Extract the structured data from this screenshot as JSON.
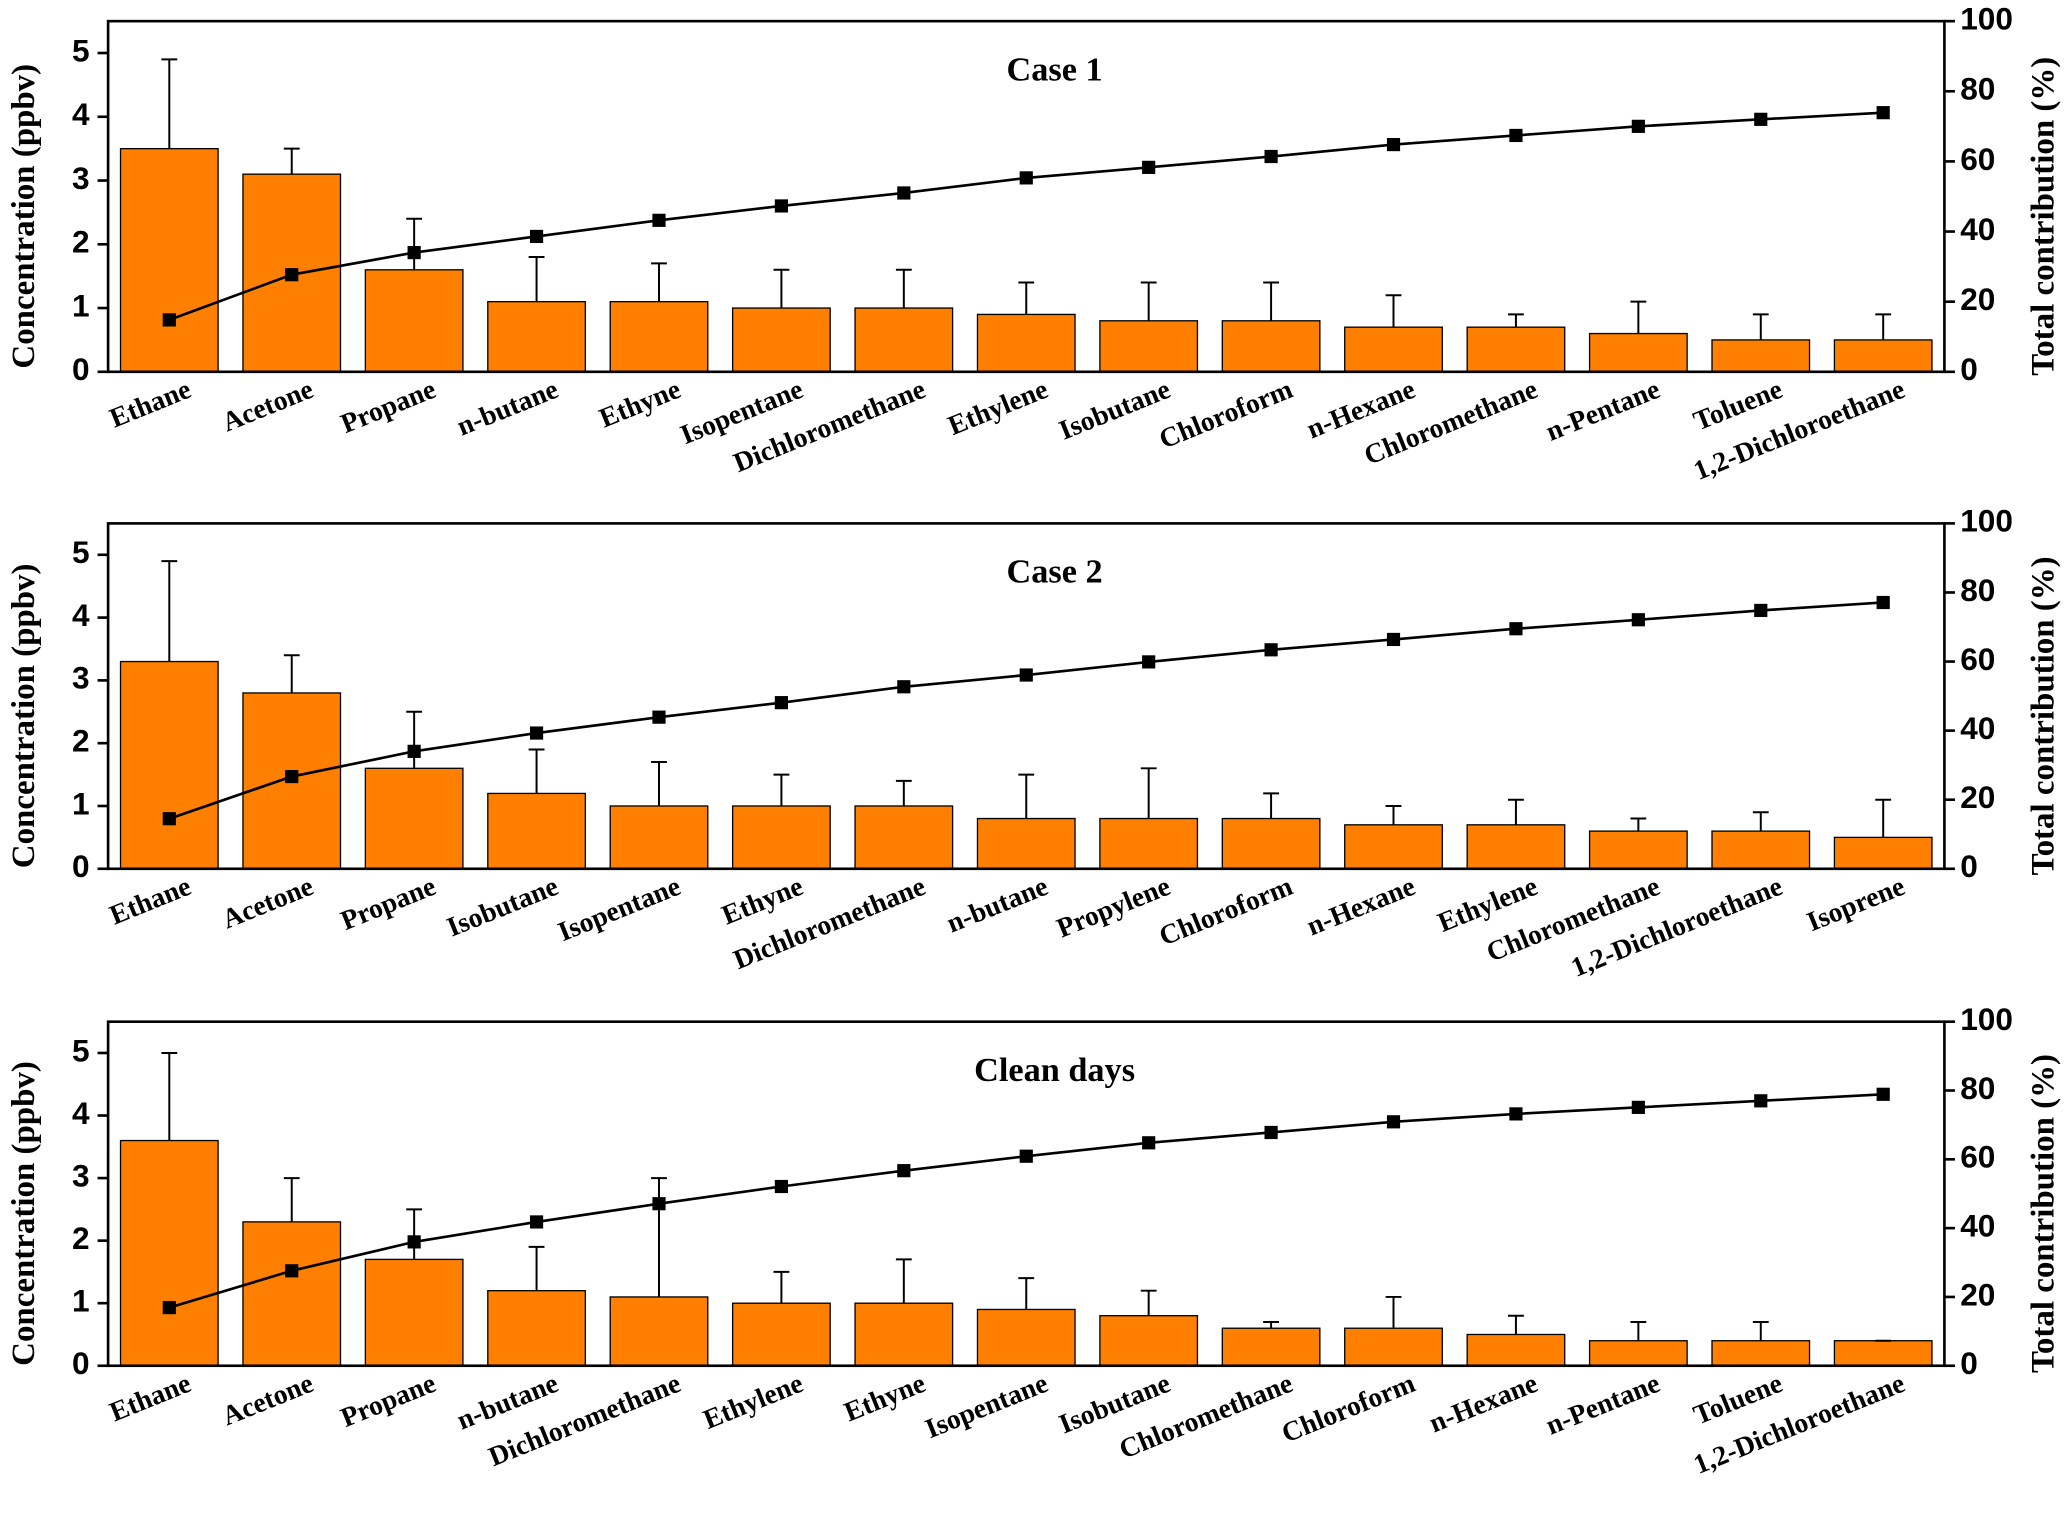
{
  "chart_data": [
    {
      "type": "bar",
      "title": "Case 1",
      "ylabel": "Concentration (ppbv)",
      "y2label": "Total contribution (%)",
      "categories": [
        "Ethane",
        "Acetone",
        "Propane",
        "n-butane",
        "Ethyne",
        "Isopentane",
        "Dichloromethane",
        "Ethylene",
        "Isobutane",
        "Chloroform",
        "n-Hexane",
        "Chloromethane",
        "n-Pentane",
        "Toluene",
        "1,2-Dichloroethane"
      ],
      "values": [
        3.5,
        3.1,
        1.6,
        1.1,
        1.1,
        1.0,
        1.0,
        0.9,
        0.8,
        0.8,
        0.7,
        0.7,
        0.6,
        0.5,
        0.5
      ],
      "errors": [
        1.4,
        0.4,
        0.8,
        0.7,
        0.6,
        0.6,
        0.6,
        0.5,
        0.6,
        0.6,
        0.5,
        0.2,
        0.5,
        0.4,
        0.4
      ],
      "color": "#ff8000",
      "line": {
        "axis": "y2",
        "color": "#000000",
        "values": [
          14.8,
          27.7,
          34,
          38.6,
          43.2,
          47.3,
          51,
          55.3,
          58.3,
          61.4,
          64.8,
          67.4,
          70,
          72,
          73.9
        ]
      },
      "ylim": [
        0,
        5.5
      ],
      "yticks": [
        0,
        1,
        2,
        3,
        4,
        5
      ],
      "y2lim": [
        0,
        100
      ],
      "y2ticks": [
        0,
        20,
        40,
        60,
        80,
        100
      ]
    },
    {
      "type": "bar",
      "title": "Case 2",
      "ylabel": "Concentration (ppbv)",
      "y2label": "Total contribution (%)",
      "categories": [
        "Ethane",
        "Acetone",
        "Propane",
        "Isobutane",
        "Isopentane",
        "Ethyne",
        "Dichloromethane",
        "n-butane",
        "Propylene",
        "Chloroform",
        "n-Hexane",
        "Ethylene",
        "Chloromethane",
        "1,2-Dichloroethane",
        "Isoprene"
      ],
      "values": [
        3.3,
        2.8,
        1.6,
        1.2,
        1.0,
        1.0,
        1.0,
        0.8,
        0.8,
        0.8,
        0.7,
        0.7,
        0.6,
        0.6,
        0.5
      ],
      "errors": [
        1.6,
        0.6,
        0.9,
        0.7,
        0.7,
        0.5,
        0.4,
        0.7,
        0.8,
        0.4,
        0.3,
        0.4,
        0.2,
        0.3,
        0.6
      ],
      "color": "#ff8000",
      "line": {
        "axis": "y2",
        "color": "#000000",
        "values": [
          14.5,
          26.7,
          34,
          39.3,
          43.9,
          48.1,
          52.7,
          56.1,
          59.9,
          63.4,
          66.4,
          69.5,
          72.1,
          74.8,
          77.1
        ]
      },
      "ylim": [
        0,
        5.5
      ],
      "yticks": [
        0,
        1,
        2,
        3,
        4,
        5
      ],
      "y2lim": [
        0,
        100
      ],
      "y2ticks": [
        0,
        20,
        40,
        60,
        80,
        100
      ]
    },
    {
      "type": "bar",
      "title": "Clean days",
      "ylabel": "Concentration (ppbv)",
      "y2label": "Total contribution (%)",
      "categories": [
        "Ethane",
        "Acetone",
        "Propane",
        "n-butane",
        "Dichloromethane",
        "Ethylene",
        "Ethyne",
        "Isopentane",
        "Isobutane",
        "Chloromethane",
        "Chloroform",
        "n-Hexane",
        "n-Pentane",
        "Toluene",
        "1,2-Dichloroethane"
      ],
      "values": [
        3.6,
        2.3,
        1.7,
        1.2,
        1.1,
        1.0,
        1.0,
        0.9,
        0.8,
        0.6,
        0.6,
        0.5,
        0.4,
        0.4,
        0.4
      ],
      "errors": [
        1.4,
        0.7,
        0.8,
        0.7,
        1.9,
        0.5,
        0.7,
        0.5,
        0.4,
        0.1,
        0.5,
        0.3,
        0.3,
        0.3,
        0
      ],
      "color": "#ff8000",
      "line": {
        "axis": "y2",
        "color": "#000000",
        "values": [
          16.9,
          27.6,
          36,
          41.8,
          47.1,
          52.1,
          56.7,
          60.9,
          64.8,
          67.8,
          70.9,
          73.2,
          75.1,
          77,
          78.9
        ]
      },
      "ylim": [
        0,
        5.5
      ],
      "yticks": [
        0,
        1,
        2,
        3,
        4,
        5
      ],
      "y2lim": [
        0,
        100
      ],
      "y2ticks": [
        0,
        20,
        40,
        60,
        80,
        100
      ]
    }
  ]
}
